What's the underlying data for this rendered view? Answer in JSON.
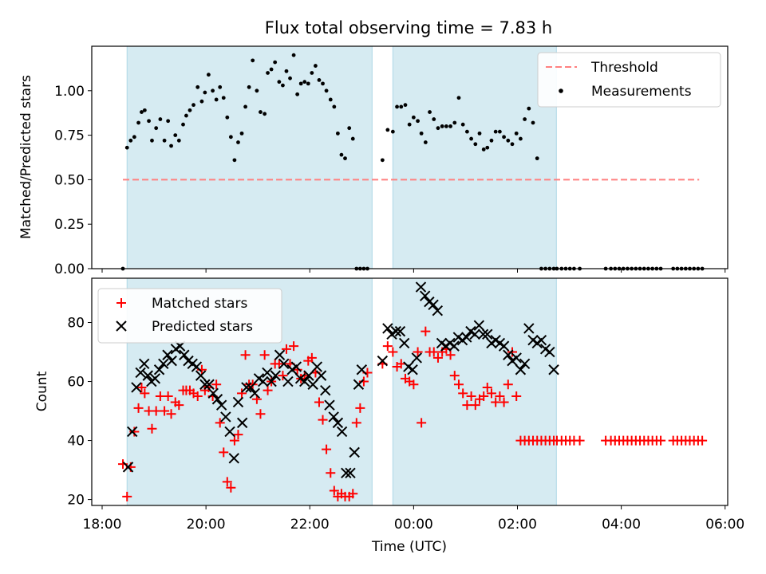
{
  "figure": {
    "title": "Flux total observing time = 7.83 h",
    "xlabel": "Time (UTC)"
  },
  "colors": {
    "shade": "#add8e6",
    "threshold": "#ff8080",
    "measurement": "#000000",
    "matched": "#ff0000",
    "predicted": "#000000"
  },
  "x_ticks": [
    {
      "t": 0.0,
      "label": "18:00"
    },
    {
      "t": 2.0,
      "label": "20:00"
    },
    {
      "t": 4.0,
      "label": "22:00"
    },
    {
      "t": 6.0,
      "label": "00:00"
    },
    {
      "t": 8.0,
      "label": "02:00"
    },
    {
      "t": 10.0,
      "label": "04:00"
    },
    {
      "t": 12.0,
      "label": "06:00"
    }
  ],
  "chart_data": [
    {
      "type": "scatter",
      "title": "Flux total observing time = 7.83 h",
      "xlabel": "",
      "ylabel": "Matched/Predicted stars",
      "xlim": [
        -0.2,
        12.05
      ],
      "ylim": [
        0.0,
        1.25
      ],
      "y_ticks": [
        "0.00",
        "0.25",
        "0.50",
        "0.75",
        "1.00"
      ],
      "shaded_intervals": [
        [
          0.48,
          5.2
        ],
        [
          5.6,
          8.75
        ]
      ],
      "legend": {
        "placement": "upper right"
      },
      "series": [
        {
          "name": "Threshold",
          "kind": "dashed-line",
          "x": [
            0.4,
            11.5
          ],
          "y": [
            0.5,
            0.5
          ]
        },
        {
          "name": "Measurements",
          "kind": "points",
          "x": [
            0.4,
            0.48,
            0.55,
            0.62,
            0.7,
            0.76,
            0.82,
            0.9,
            0.96,
            1.04,
            1.12,
            1.2,
            1.27,
            1.33,
            1.41,
            1.48,
            1.56,
            1.62,
            1.69,
            1.76,
            1.84,
            1.92,
            1.98,
            2.05,
            2.13,
            2.2,
            2.27,
            2.34,
            2.41,
            2.48,
            2.55,
            2.62,
            2.69,
            2.76,
            2.83,
            2.9,
            2.98,
            3.05,
            3.13,
            3.19,
            3.26,
            3.33,
            3.41,
            3.48,
            3.55,
            3.62,
            3.69,
            3.76,
            3.83,
            3.9,
            3.97,
            4.04,
            4.11,
            4.18,
            4.25,
            4.32,
            4.4,
            4.47,
            4.54,
            4.61,
            4.68,
            4.76,
            4.83,
            4.9,
            4.97,
            5.04,
            5.11,
            5.4,
            5.5,
            5.6,
            5.68,
            5.76,
            5.84,
            5.92,
            6.0,
            6.08,
            6.15,
            6.23,
            6.31,
            6.39,
            6.47,
            6.55,
            6.63,
            6.71,
            6.79,
            6.87,
            6.95,
            7.03,
            7.11,
            7.19,
            7.27,
            7.35,
            7.42,
            7.5,
            7.58,
            7.66,
            7.74,
            7.82,
            7.9,
            7.98,
            8.06,
            8.14,
            8.22,
            8.3,
            8.38,
            8.46,
            8.54,
            8.62,
            8.7,
            8.76,
            8.85,
            8.93,
            9.01,
            9.09,
            9.2,
            9.7,
            9.8,
            9.88,
            9.96,
            10.04,
            10.12,
            10.2,
            10.28,
            10.36,
            10.44,
            10.52,
            10.6,
            10.68,
            10.76,
            11.0,
            11.08,
            11.16,
            11.24,
            11.32,
            11.4,
            11.48,
            11.56
          ],
          "y": [
            0.0,
            0.68,
            0.72,
            0.74,
            0.82,
            0.88,
            0.89,
            0.83,
            0.72,
            0.79,
            0.84,
            0.72,
            0.83,
            0.69,
            0.75,
            0.72,
            0.81,
            0.86,
            0.89,
            0.92,
            1.02,
            0.94,
            0.99,
            1.09,
            1.0,
            0.95,
            1.02,
            0.96,
            0.85,
            0.74,
            0.61,
            0.71,
            0.76,
            0.91,
            1.02,
            1.17,
            1.0,
            0.88,
            0.87,
            1.1,
            1.12,
            1.16,
            1.05,
            1.03,
            1.11,
            1.07,
            1.2,
            0.98,
            1.04,
            1.05,
            1.04,
            1.1,
            1.14,
            1.06,
            1.04,
            1.0,
            0.95,
            0.91,
            0.76,
            0.64,
            0.62,
            0.79,
            0.73,
            0.0,
            0.0,
            0.0,
            0.0,
            0.61,
            0.78,
            0.77,
            0.91,
            0.91,
            0.92,
            0.81,
            0.85,
            0.83,
            0.76,
            0.71,
            0.88,
            0.84,
            0.79,
            0.8,
            0.8,
            0.8,
            0.82,
            0.96,
            0.81,
            0.77,
            0.73,
            0.7,
            0.76,
            0.67,
            0.68,
            0.72,
            0.77,
            0.77,
            0.74,
            0.72,
            0.7,
            0.76,
            0.73,
            0.84,
            0.9,
            0.82,
            0.62,
            0.0,
            0.0,
            0.0,
            0.0,
            0.0,
            0.0,
            0.0,
            0.0,
            0.0,
            0.0,
            0.0,
            0.0,
            0.0,
            0.0,
            0.0,
            0.0,
            0.0,
            0.0,
            0.0,
            0.0,
            0.0,
            0.0,
            0.0,
            0.0,
            0.0,
            0.0,
            0.0,
            0.0,
            0.0,
            0.0,
            0.0,
            0.0
          ]
        }
      ]
    },
    {
      "type": "scatter",
      "title": "",
      "xlabel": "Time (UTC)",
      "ylabel": "Count",
      "xlim": [
        -0.2,
        12.05
      ],
      "ylim": [
        18,
        95
      ],
      "y_ticks": [
        "20",
        "40",
        "60",
        "80"
      ],
      "shaded_intervals": [
        [
          0.48,
          5.2
        ],
        [
          5.6,
          8.75
        ]
      ],
      "legend": {
        "placement": "upper left"
      },
      "series": [
        {
          "name": "Matched stars",
          "marker": "plus",
          "x": [
            0.4,
            0.48,
            0.55,
            0.62,
            0.7,
            0.76,
            0.82,
            0.9,
            0.96,
            1.04,
            1.12,
            1.2,
            1.27,
            1.33,
            1.41,
            1.48,
            1.56,
            1.62,
            1.69,
            1.76,
            1.84,
            1.92,
            1.98,
            2.05,
            2.13,
            2.2,
            2.27,
            2.34,
            2.41,
            2.48,
            2.55,
            2.62,
            2.69,
            2.76,
            2.83,
            2.9,
            2.98,
            3.05,
            3.13,
            3.19,
            3.26,
            3.33,
            3.41,
            3.48,
            3.55,
            3.62,
            3.69,
            3.76,
            3.83,
            3.9,
            3.97,
            4.04,
            4.11,
            4.18,
            4.25,
            4.32,
            4.4,
            4.47,
            4.54,
            4.61,
            4.68,
            4.76,
            4.83,
            4.9,
            4.97,
            5.04,
            5.11,
            5.4,
            5.5,
            5.6,
            5.68,
            5.76,
            5.84,
            5.92,
            6.0,
            6.08,
            6.15,
            6.23,
            6.31,
            6.39,
            6.47,
            6.55,
            6.63,
            6.71,
            6.79,
            6.87,
            6.95,
            7.03,
            7.11,
            7.19,
            7.27,
            7.35,
            7.42,
            7.5,
            7.58,
            7.66,
            7.74,
            7.82,
            7.9,
            7.98,
            8.06,
            8.14,
            8.22,
            8.3,
            8.38,
            8.46,
            8.54,
            8.62,
            8.7,
            8.76,
            8.85,
            8.93,
            9.01,
            9.09,
            9.2,
            9.7,
            9.8,
            9.88,
            9.96,
            10.04,
            10.12,
            10.2,
            10.28,
            10.36,
            10.44,
            10.52,
            10.6,
            10.68,
            10.76,
            11.0,
            11.08,
            11.16,
            11.24,
            11.32,
            11.4,
            11.48,
            11.56
          ],
          "y": [
            32,
            21,
            31,
            43,
            51,
            58,
            56,
            50,
            44,
            50,
            55,
            50,
            55,
            49,
            53,
            52,
            57,
            57,
            57,
            56,
            55,
            64,
            57,
            58,
            55,
            59,
            46,
            36,
            26,
            24,
            40,
            42,
            56,
            69,
            59,
            59,
            54,
            49,
            69,
            57,
            60,
            66,
            66,
            62,
            71,
            66,
            72,
            64,
            61,
            62,
            67,
            68,
            63,
            53,
            47,
            37,
            29,
            23,
            21,
            22,
            21,
            21,
            22,
            46,
            51,
            60,
            63,
            66,
            72,
            70,
            65,
            66,
            61,
            60,
            59,
            70,
            46,
            77,
            70,
            70,
            68,
            70,
            71,
            69,
            62,
            59,
            56,
            52,
            55,
            52,
            54,
            55,
            58,
            56,
            53,
            55,
            53,
            59,
            70,
            55,
            40,
            40,
            40,
            40,
            40,
            40,
            40,
            40,
            40,
            40,
            40,
            40,
            40,
            40,
            40,
            40,
            40,
            40,
            40,
            40,
            40,
            40,
            40,
            40,
            40,
            40,
            40,
            40,
            40,
            40,
            40,
            40,
            40,
            40,
            40,
            40,
            40
          ]
        },
        {
          "name": "Predicted stars",
          "marker": "x",
          "x": [
            0.5,
            0.58,
            0.66,
            0.74,
            0.81,
            0.88,
            0.95,
            1.02,
            1.1,
            1.18,
            1.26,
            1.34,
            1.42,
            1.5,
            1.58,
            1.66,
            1.74,
            1.82,
            1.9,
            1.98,
            2.06,
            2.14,
            2.22,
            2.3,
            2.38,
            2.46,
            2.54,
            2.62,
            2.7,
            2.78,
            2.86,
            2.94,
            3.02,
            3.1,
            3.18,
            3.26,
            3.34,
            3.42,
            3.5,
            3.58,
            3.66,
            3.74,
            3.82,
            3.9,
            3.98,
            4.06,
            4.14,
            4.22,
            4.3,
            4.38,
            4.46,
            4.54,
            4.62,
            4.7,
            4.78,
            4.86,
            4.94,
            5.0,
            5.4,
            5.5,
            5.58,
            5.66,
            5.74,
            5.82,
            5.9,
            5.98,
            6.06,
            6.14,
            6.22,
            6.3,
            6.38,
            6.46,
            6.54,
            6.62,
            6.7,
            6.78,
            6.86,
            6.94,
            7.02,
            7.1,
            7.18,
            7.26,
            7.34,
            7.42,
            7.5,
            7.58,
            7.66,
            7.74,
            7.82,
            7.9,
            7.98,
            8.06,
            8.14,
            8.22,
            8.3,
            8.38,
            8.46,
            8.54,
            8.62,
            8.7
          ],
          "y": [
            31,
            43,
            58,
            63,
            66,
            62,
            60,
            61,
            64,
            66,
            69,
            67,
            71,
            72,
            69,
            67,
            66,
            65,
            62,
            59,
            59,
            56,
            54,
            52,
            48,
            43,
            34,
            53,
            46,
            58,
            58,
            56,
            61,
            60,
            63,
            60,
            62,
            69,
            66,
            60,
            64,
            65,
            61,
            60,
            62,
            59,
            65,
            62,
            57,
            52,
            48,
            46,
            43,
            29,
            29,
            36,
            59,
            64,
            67,
            78,
            76,
            77,
            77,
            73,
            65,
            64,
            68,
            92,
            89,
            87,
            86,
            84,
            73,
            72,
            73,
            72,
            75,
            74,
            75,
            77,
            76,
            79,
            76,
            76,
            73,
            74,
            73,
            72,
            69,
            67,
            68,
            64,
            66,
            78,
            74,
            73,
            74,
            71,
            70,
            64
          ]
        }
      ]
    }
  ]
}
